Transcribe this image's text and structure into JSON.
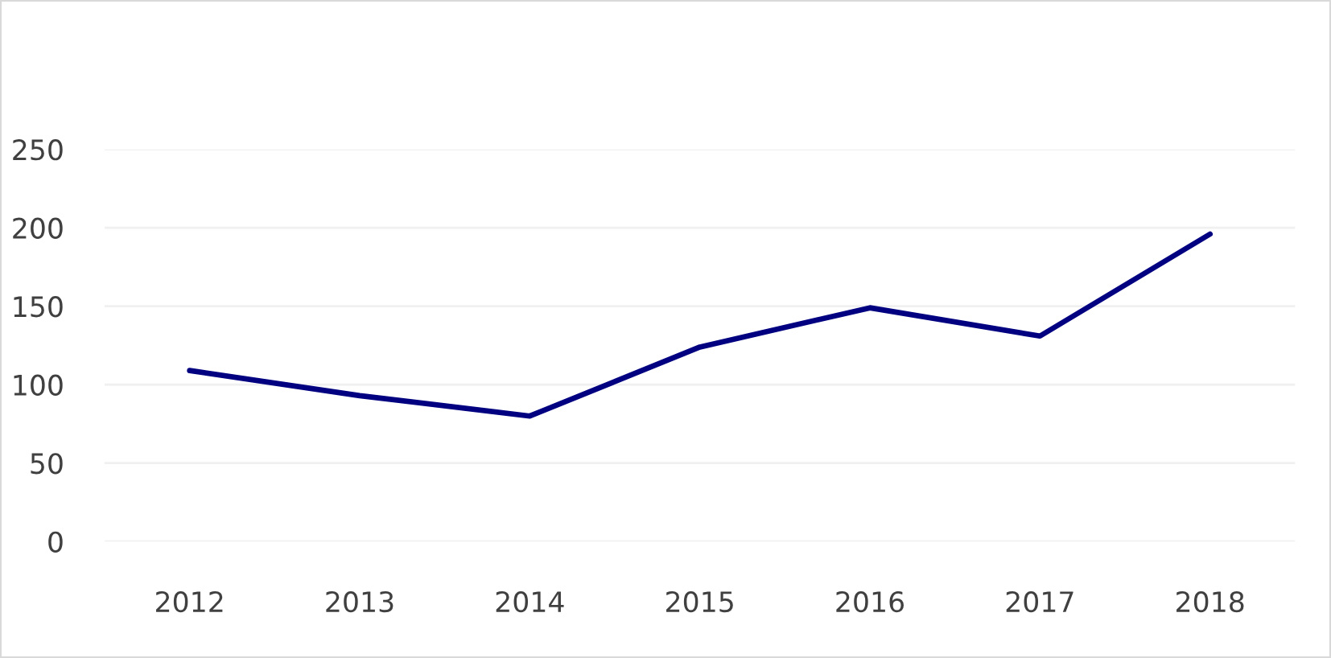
{
  "chart_data": {
    "type": "line",
    "categories": [
      "2012",
      "2013",
      "2014",
      "2015",
      "2016",
      "2017",
      "2018"
    ],
    "series": [
      {
        "color": "#000080",
        "values": [
          109,
          93,
          80,
          124,
          149,
          131,
          196
        ]
      }
    ],
    "ylim": [
      0,
      250
    ],
    "yticks": [
      0,
      50,
      100,
      150,
      200,
      250
    ],
    "grid": "y",
    "marker": "none",
    "line_style": "solid"
  }
}
